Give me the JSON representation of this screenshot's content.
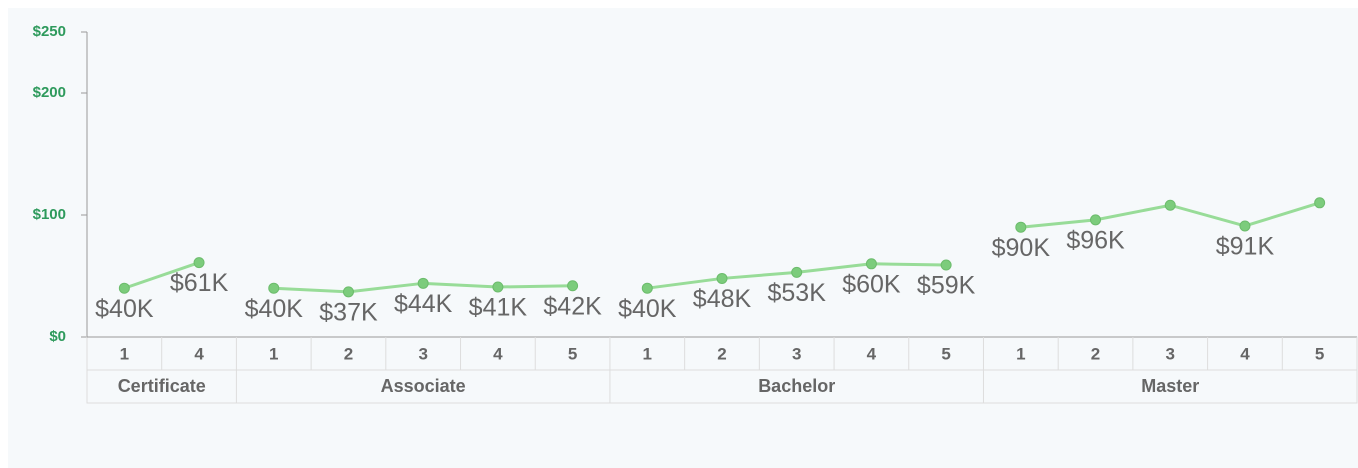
{
  "chart_data": {
    "type": "line",
    "color": "#98dc98",
    "marker_color": "#7ccc7c",
    "ylim": [
      0,
      250
    ],
    "yticks": [
      {
        "value": 0,
        "label": "$0"
      },
      {
        "value": 100,
        "label": "$100"
      },
      {
        "value": 200,
        "label": "$200"
      },
      {
        "value": 250,
        "label": "$250"
      }
    ],
    "groups": [
      {
        "name": "Certificate",
        "categories": [
          "1",
          "4"
        ],
        "values": [
          40,
          61
        ],
        "value_labels": [
          "$40K",
          "$61K"
        ]
      },
      {
        "name": "Associate",
        "categories": [
          "1",
          "2",
          "3",
          "4",
          "5"
        ],
        "values": [
          40,
          37,
          44,
          41,
          42
        ],
        "value_labels": [
          "$40K",
          "$37K",
          "$44K",
          "$41K",
          "$42K"
        ]
      },
      {
        "name": "Bachelor",
        "categories": [
          "1",
          "2",
          "3",
          "4",
          "5"
        ],
        "values": [
          40,
          48,
          53,
          60,
          59
        ],
        "value_labels": [
          "$40K",
          "$48K",
          "$53K",
          "$60K",
          "$59K"
        ]
      },
      {
        "name": "Master",
        "categories": [
          "1",
          "2",
          "3",
          "4",
          "5"
        ],
        "values": [
          90,
          96,
          108,
          91,
          110
        ],
        "value_labels": [
          "$90K",
          "$96K",
          null,
          "$91K",
          null
        ]
      }
    ]
  }
}
